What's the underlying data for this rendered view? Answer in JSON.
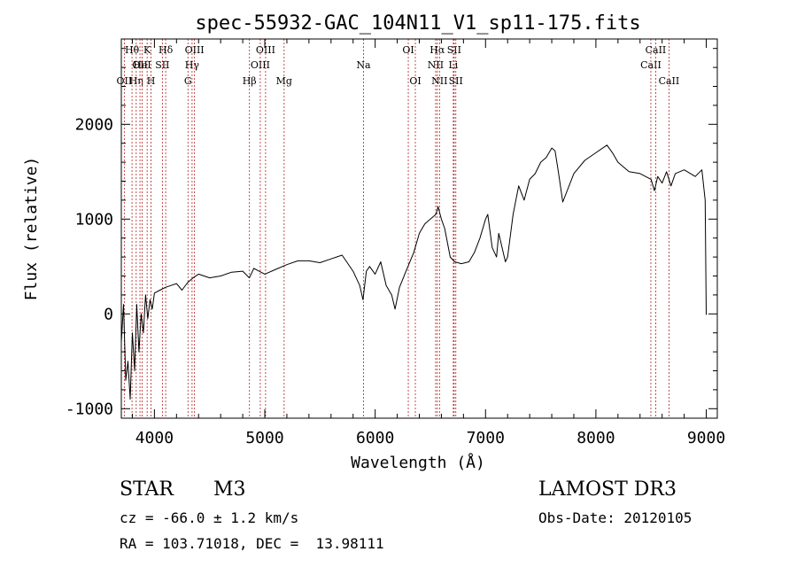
{
  "chart_data": {
    "type": "line",
    "title": "spec-55932-GAC_104N11_V1_sp11-175.fits",
    "xlabel": "Wavelength (Å)",
    "ylabel": "Flux (relative)",
    "xlim": [
      3700,
      9100
    ],
    "ylim": [
      -1100,
      2900
    ],
    "xticks": [
      4000,
      5000,
      6000,
      7000,
      8000,
      9000
    ],
    "yticks": [
      -1000,
      0,
      1000,
      2000
    ],
    "series": [
      {
        "name": "spectrum",
        "x": [
          3700,
          3720,
          3740,
          3760,
          3780,
          3800,
          3820,
          3840,
          3860,
          3880,
          3900,
          3920,
          3940,
          3960,
          3980,
          4000,
          4050,
          4100,
          4150,
          4200,
          4250,
          4300,
          4350,
          4400,
          4500,
          4600,
          4700,
          4800,
          4860,
          4900,
          5000,
          5100,
          5200,
          5300,
          5400,
          5500,
          5600,
          5700,
          5800,
          5860,
          5890,
          5920,
          5950,
          6000,
          6050,
          6100,
          6150,
          6180,
          6220,
          6280,
          6350,
          6400,
          6450,
          6500,
          6550,
          6570,
          6600,
          6630,
          6680,
          6720,
          6780,
          6850,
          6900,
          6950,
          7000,
          7020,
          7060,
          7100,
          7120,
          7140,
          7180,
          7200,
          7250,
          7300,
          7350,
          7400,
          7450,
          7500,
          7550,
          7600,
          7630,
          7660,
          7700,
          7800,
          7900,
          8000,
          8100,
          8150,
          8200,
          8300,
          8400,
          8500,
          8530,
          8560,
          8600,
          8640,
          8680,
          8720,
          8800,
          8900,
          8960,
          8990,
          9000
        ],
        "y": [
          -300,
          100,
          -700,
          -500,
          -900,
          -200,
          -600,
          100,
          -400,
          0,
          -200,
          200,
          -50,
          150,
          50,
          220,
          250,
          280,
          300,
          320,
          250,
          330,
          380,
          420,
          380,
          400,
          440,
          450,
          380,
          480,
          420,
          470,
          520,
          560,
          560,
          540,
          580,
          620,
          450,
          300,
          150,
          450,
          500,
          420,
          550,
          300,
          200,
          50,
          280,
          450,
          650,
          850,
          950,
          1000,
          1050,
          1130,
          1000,
          900,
          600,
          550,
          530,
          550,
          650,
          800,
          1000,
          1050,
          700,
          600,
          850,
          750,
          550,
          600,
          1050,
          1350,
          1200,
          1420,
          1480,
          1600,
          1650,
          1750,
          1720,
          1500,
          1180,
          1480,
          1620,
          1700,
          1780,
          1700,
          1600,
          1500,
          1480,
          1420,
          1300,
          1450,
          1380,
          1500,
          1350,
          1480,
          1520,
          1450,
          1520,
          1200,
          -10
        ]
      }
    ],
    "lines": [
      {
        "w": 3727,
        "label": "OII",
        "row": 3
      },
      {
        "w": 3797,
        "label": "Hθ",
        "row": 1
      },
      {
        "w": 3835,
        "label": "Hη",
        "row": 3
      },
      {
        "w": 3869,
        "label": "OII",
        "row": 2
      },
      {
        "w": 3889,
        "label": "HeI",
        "row": 2
      },
      {
        "w": 3934,
        "label": "K",
        "row": 1
      },
      {
        "w": 3969,
        "label": "H",
        "row": 3
      },
      {
        "w": 4072,
        "label": "SII",
        "row": 2
      },
      {
        "w": 4102,
        "label": "Hδ",
        "row": 1
      },
      {
        "w": 4304,
        "label": "G",
        "row": 3
      },
      {
        "w": 4341,
        "label": "Hγ",
        "row": 2
      },
      {
        "w": 4363,
        "label": "OIII",
        "row": 1
      },
      {
        "w": 4861,
        "label": "Hβ",
        "row": 3
      },
      {
        "w": 4959,
        "label": "OIII",
        "row": 2
      },
      {
        "w": 5007,
        "label": "OIII",
        "row": 1
      },
      {
        "w": 5175,
        "label": "Mg",
        "row": 3
      },
      {
        "w": 5894,
        "label": "Na",
        "row": 2
      },
      {
        "w": 6300,
        "label": "OI",
        "row": 1
      },
      {
        "w": 6364,
        "label": "OI",
        "row": 3
      },
      {
        "w": 6548,
        "label": "NII",
        "row": 2
      },
      {
        "w": 6563,
        "label": "Hα",
        "row": 1
      },
      {
        "w": 6583,
        "label": "NII",
        "row": 3
      },
      {
        "w": 6708,
        "label": "Li",
        "row": 2
      },
      {
        "w": 6716,
        "label": "SII",
        "row": 1
      },
      {
        "w": 6731,
        "label": "SII",
        "row": 3
      },
      {
        "w": 8498,
        "label": "CaII",
        "row": 2
      },
      {
        "w": 8542,
        "label": "CaII",
        "row": 1
      },
      {
        "w": 8662,
        "label": "CaII",
        "row": 3
      }
    ]
  },
  "info": {
    "class": "STAR",
    "subclass": "M3",
    "survey": "LAMOST DR3",
    "cz": "cz = -66.0 ± 1.2 km/s",
    "obs_date": "Obs-Date: 20120105",
    "coords": "RA = 103.71018, DEC =  13.98111"
  },
  "colors": {
    "line_marker": "#b22222",
    "spectrum": "#000000"
  }
}
